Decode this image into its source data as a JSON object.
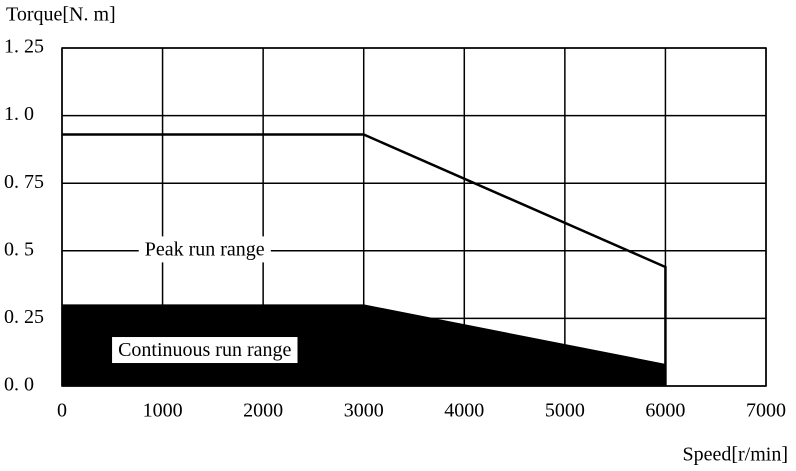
{
  "chart_data": {
    "type": "area",
    "y_label": "Torque[N. m]",
    "x_label": "Speed[r/min]",
    "xlim": [
      0,
      7000
    ],
    "xticks": [
      0,
      1000,
      2000,
      3000,
      4000,
      5000,
      6000,
      7000
    ],
    "ylim": [
      0,
      1.25
    ],
    "yticks": [
      {
        "value": 0,
        "label": "0. 0"
      },
      {
        "value": 0.25,
        "label": "0. 25"
      },
      {
        "value": 0.5,
        "label": "0. 5"
      },
      {
        "value": 0.75,
        "label": "0. 75"
      },
      {
        "value": 1.0,
        "label": "1. 0"
      },
      {
        "value": 1.25,
        "label": "1. 25"
      }
    ],
    "grid": true,
    "series": [
      {
        "name": "Peak run range",
        "style": "line",
        "color": "#000000",
        "x": [
          0,
          3000,
          6000,
          6000
        ],
        "values": [
          0.93,
          0.93,
          0.44,
          0
        ]
      },
      {
        "name": "Continuous run range",
        "style": "filled",
        "color": "#000000",
        "x": [
          0,
          3000,
          6000
        ],
        "values": [
          0.3,
          0.3,
          0.08
        ]
      }
    ]
  }
}
